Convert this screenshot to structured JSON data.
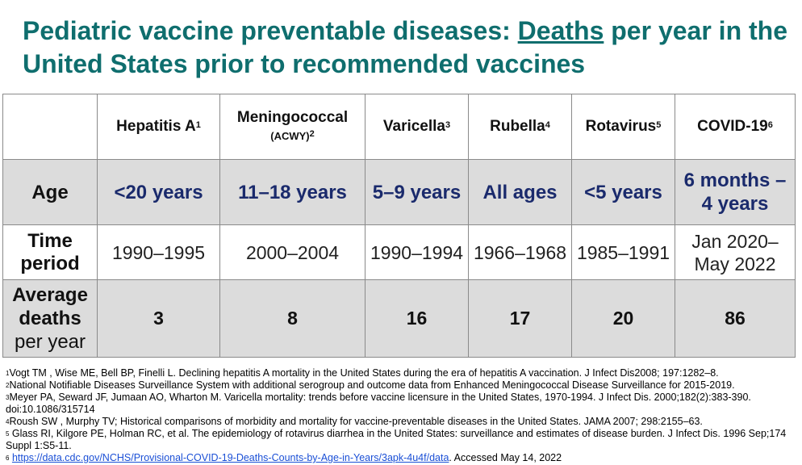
{
  "title": {
    "part1": "Pediatric vaccine preventable diseases: ",
    "underlined": "Deaths",
    "part2": " per year in the United States prior to recommended vaccines"
  },
  "table": {
    "columns": [
      {
        "name": "Hepatitis A",
        "sup": "1",
        "sub": ""
      },
      {
        "name": "Meningococcal",
        "sup": "2",
        "sub": "(ACWY)"
      },
      {
        "name": "Varicella",
        "sup": "3",
        "sub": ""
      },
      {
        "name": "Rubella",
        "sup": "4",
        "sub": ""
      },
      {
        "name": "Rotavirus",
        "sup": "5",
        "sub": ""
      },
      {
        "name": "COVID-19",
        "sup": "6",
        "sub": ""
      }
    ],
    "rows": {
      "age": {
        "label": "Age",
        "values": [
          "<20 years",
          "11–18 years",
          "5–9 years",
          "All ages",
          "<5 years",
          "6 months – 4 years"
        ]
      },
      "time": {
        "label": "Time period",
        "values": [
          "1990–1995",
          "2000–2004",
          "1990–1994",
          "1966–1968",
          "1985–1991",
          "Jan 2020–May 2022"
        ]
      },
      "deaths": {
        "label_bold": "Average deaths",
        "label_normal": "per year",
        "values": [
          "3",
          "8",
          "16",
          "17",
          "20",
          "86"
        ]
      }
    }
  },
  "footnotes": [
    {
      "num": "1",
      "text": "Vogt TM , Wise ME, Bell BP, Finelli L. Declining hepatitis A mortality in the United States during the era of hepatitis A vaccination. J Infect Dis2008; 197:1282–8."
    },
    {
      "num": "2",
      "text": "National Notifiable Diseases Surveillance System with additional serogroup and outcome data from Enhanced Meningococcal Disease Surveillance for 2015-2019."
    },
    {
      "num": "3",
      "text": "Meyer PA, Seward JF, Jumaan AO, Wharton M. Varicella mortality: trends before vaccine licensure in the United States, 1970-1994. J Infect Dis. 2000;182(2):383-390. doi:10.1086/315714"
    },
    {
      "num": "4",
      "text": "Roush SW , Murphy TV; Historical comparisons of morbidity and mortality for vaccine-preventable diseases in the United States. JAMA 2007; 298:2155–63."
    },
    {
      "num": "5",
      "text": " Glass RI, Kilgore PE, Holman RC, et al. The epidemiology of rotavirus diarrhea in the United States: surveillance and estimates of disease burden. J Infect Dis. 1996 Sep;174 Suppl 1:S5-11."
    },
    {
      "num": "6",
      "link": "https://data.cdc.gov/NCHS/Provisional-COVID-19-Deaths-Counts-by-Age-in-Years/3apk-4u4f/data",
      "text": ". Accessed May 14, 2022"
    }
  ]
}
